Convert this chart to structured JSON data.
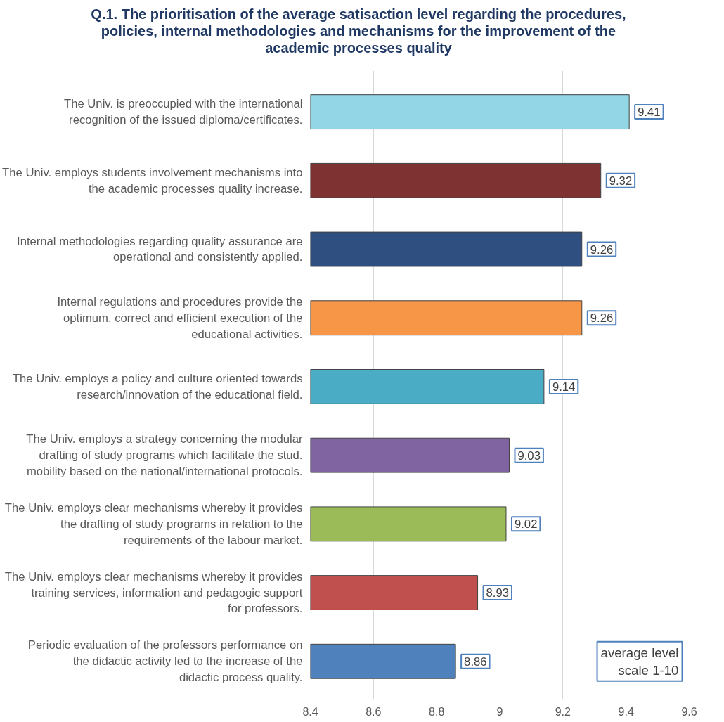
{
  "chart_data": {
    "type": "bar",
    "orientation": "horizontal",
    "title": "Q.1. The prioritisation of the average satisaction level regarding the procedures, policies, internal methodologies and mechanisms for the improvement of the academic processes quality",
    "categories": [
      "The Univ. is preoccupied with the international recognition of the issued diploma/certificates.",
      "The Univ. employs students involvement mechanisms into the academic processes quality increase.",
      "Internal methodologies regarding quality assurance are operational and consistently applied.",
      "Internal regulations and procedures provide the optimum, correct and efficient execution of the educational activities.",
      "The Univ. employs a policy and culture oriented towards research/innovation of the educational field.",
      "The Univ. employs a strategy concerning the modular drafting of study programs which facilitate the stud. mobility based on the national/international protocols.",
      "The Univ. employs clear mechanisms whereby it provides the drafting of study programs in relation to the requirements of the labour market.",
      "The Univ. employs clear mechanisms whereby it provides training services, information and pedagogic support for professors.",
      "Periodic evaluation of the professors performance on the didactic activity led to the increase of the didactic process quality."
    ],
    "values": [
      9.41,
      9.32,
      9.26,
      9.26,
      9.14,
      9.03,
      9.02,
      8.93,
      8.86
    ],
    "colors": [
      "#93d6e6",
      "#7f3232",
      "#2e4f7f",
      "#f79646",
      "#4bacc6",
      "#8064a2",
      "#9bbb59",
      "#c0504d",
      "#4f81bd"
    ],
    "xlim": [
      8.4,
      9.6
    ],
    "xticks": [
      8.4,
      8.6,
      8.8,
      9,
      9.2,
      9.4,
      9.6
    ],
    "grid": "x",
    "data_labels": true,
    "annotations": [
      "average level scale 1-10"
    ]
  }
}
